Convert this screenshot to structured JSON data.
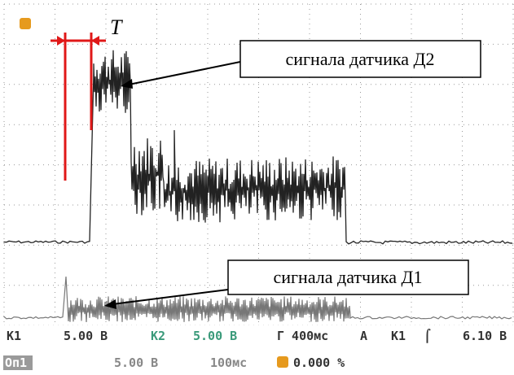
{
  "annotations": {
    "interval": "T",
    "sensor2": "сигнала датчика Д2",
    "sensor1": "сигнала датчика Д1"
  },
  "status": {
    "row1": {
      "ch1": "K1",
      "ch1_scale": "5.00 В",
      "ch2": "K2",
      "ch2_scale": "5.00 В",
      "timebase": "Г 400мс",
      "mode": "A",
      "trig_ch": "K1",
      "trig_level": "6.10 В"
    },
    "row2": {
      "ref": "Оп1",
      "ref_scale": "5.00 В",
      "ref_time": "100мс",
      "offset": "0.000 %"
    }
  }
}
